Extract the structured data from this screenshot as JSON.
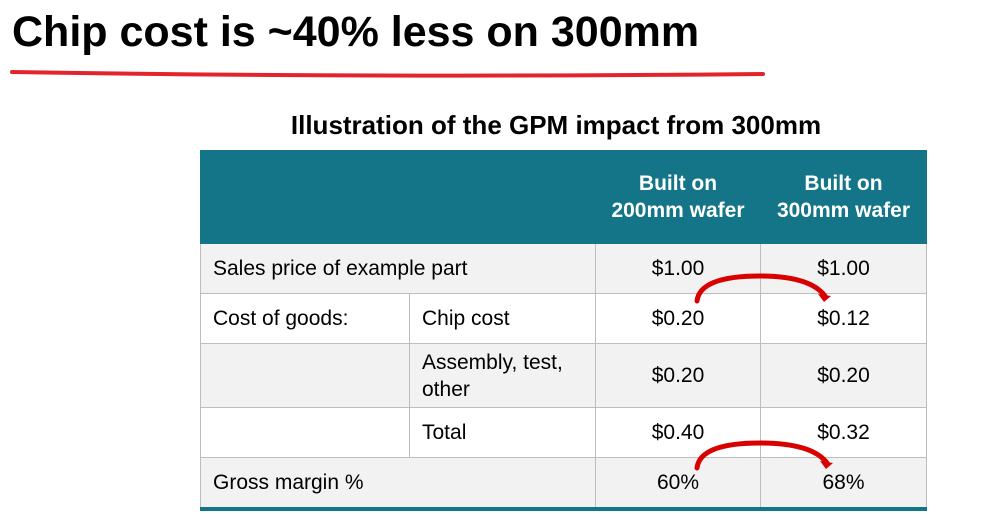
{
  "title": "Chip cost is ~40% less on 300mm",
  "subtitle": "Illustration of the GPM impact from 300mm",
  "colors": {
    "accent": "#e3242b",
    "header": "#137587",
    "arrow": "#d90000"
  },
  "table": {
    "headers": [
      "Built on 200mm wafer",
      "Built on 300mm wafer"
    ],
    "rows": [
      {
        "label": "Sales price of example part",
        "v200": "$1.00",
        "v300": "$1.00"
      },
      {
        "label": "Cost of goods:",
        "sub": "Chip cost",
        "v200": "$0.20",
        "v300": "$0.12"
      },
      {
        "label": "",
        "sub": "Assembly, test, other",
        "v200": "$0.20",
        "v300": "$0.20"
      },
      {
        "label": "",
        "sub": "Total",
        "v200": "$0.40",
        "v300": "$0.32"
      },
      {
        "label": "Gross margin %",
        "v200": "60%",
        "v300": "68%"
      }
    ]
  }
}
